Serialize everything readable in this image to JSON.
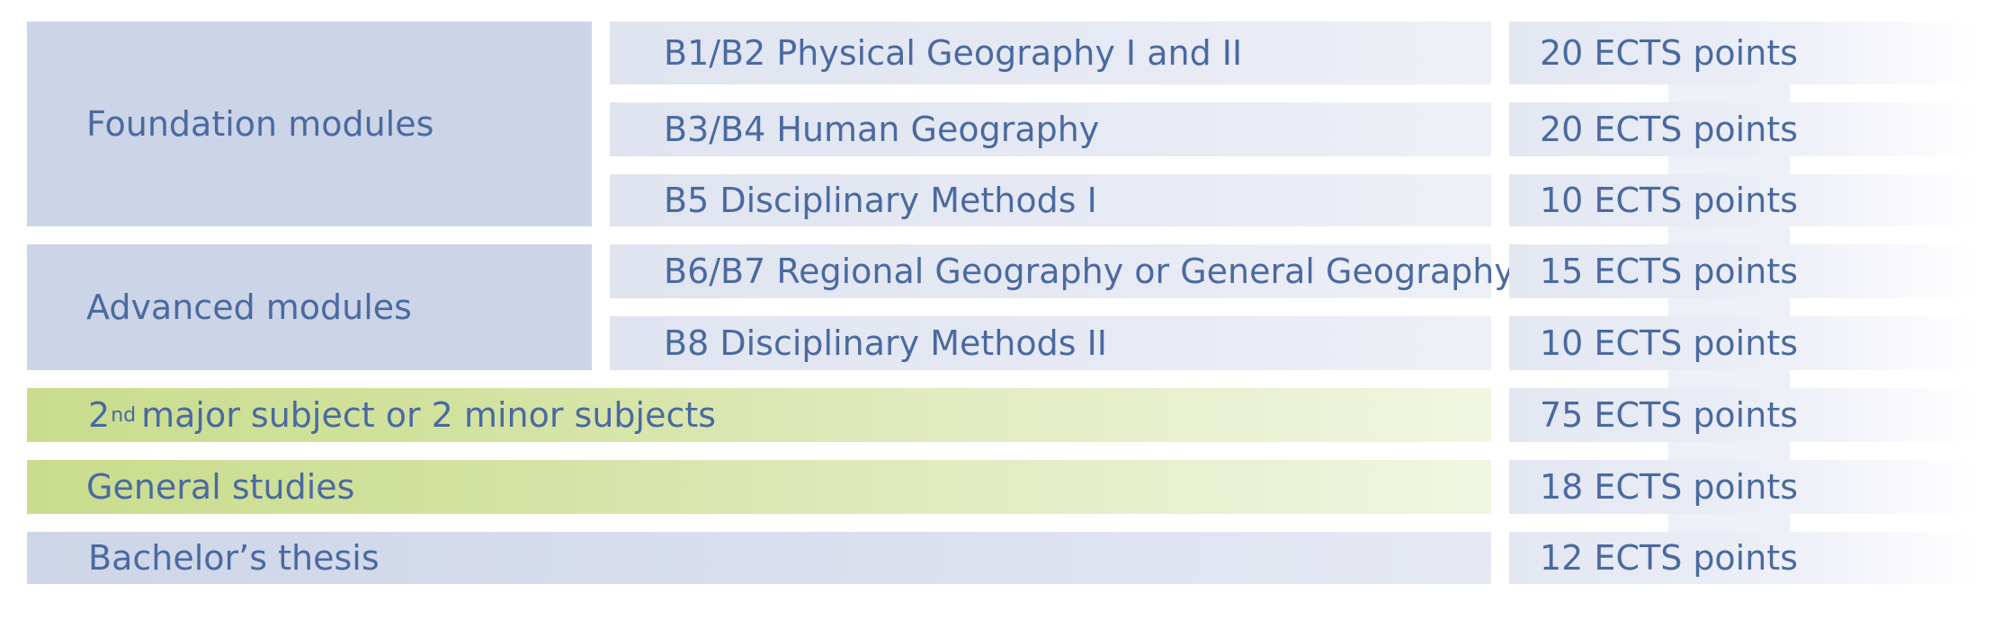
{
  "groups": {
    "foundation": "Foundation modules",
    "advanced": "Advanced modules"
  },
  "modules": [
    {
      "title": "B1/B2 Physical Geography I and II",
      "ects": "20 ECTS",
      "unit": "points"
    },
    {
      "title": "B3/B4 Human Geography",
      "ects": "20 ECTS",
      "unit": "points"
    },
    {
      "title": "B5 Disciplinary Methods I",
      "ects": "10 ECTS",
      "unit": "points"
    },
    {
      "title": "B6/B7 Regional Geography or General Geography",
      "ects": "15 ECTS",
      "unit": "points"
    },
    {
      "title": "B8 Disciplinary Methods II",
      "ects": "10 ECTS",
      "unit": "points"
    }
  ],
  "subjects": {
    "major_number": "2",
    "major_sup": "nd",
    "major_rest": "major subject or 2 minor subjects",
    "major_ects": "75 ECTS",
    "major_unit": "points",
    "general": "General studies",
    "general_ects": "18 ECTS",
    "general_unit": "points",
    "thesis": "Bachelor’s thesis",
    "thesis_ects": "12 ECTS",
    "thesis_unit": "points"
  },
  "colors": {
    "text": "#4a6aa0",
    "group_bg": "#ccd4e7",
    "green_bg": "#c9dc8d"
  }
}
